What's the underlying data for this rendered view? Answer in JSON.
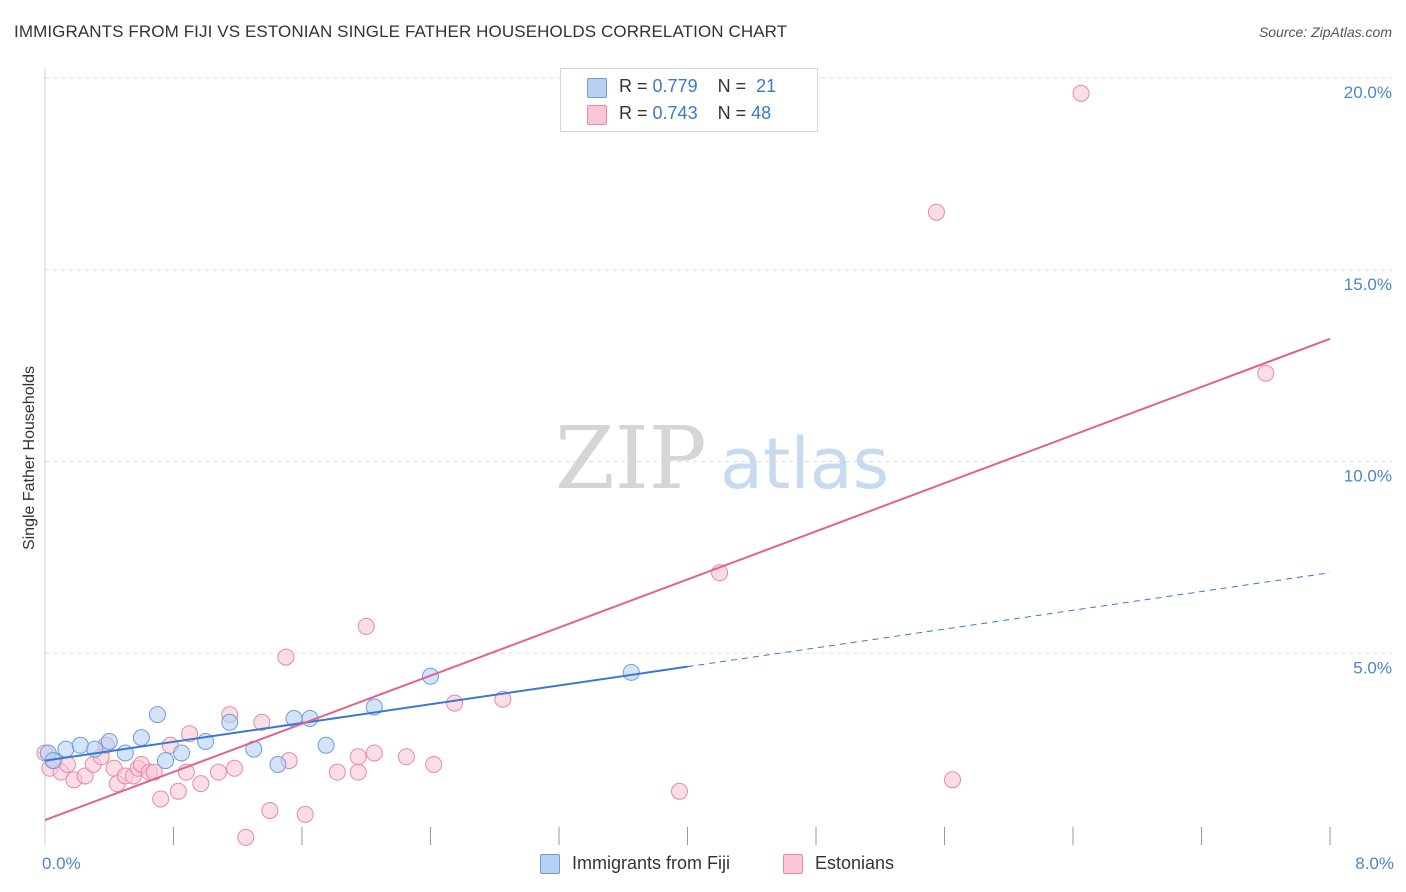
{
  "title": "IMMIGRANTS FROM FIJI VS ESTONIAN SINGLE FATHER HOUSEHOLDS CORRELATION CHART",
  "source": "Source: ZipAtlas.com",
  "watermark": {
    "zip": "ZIP",
    "atlas": "atlas"
  },
  "legend": {
    "rows": [
      {
        "r_label": "R =",
        "r_value": "0.779",
        "n_label": "N =",
        "n_value": "21"
      },
      {
        "r_label": "R =",
        "r_value": "0.743",
        "n_label": "N =",
        "n_value": "48"
      }
    ]
  },
  "bottom_legend": {
    "fiji": "Immigrants from Fiji",
    "estonians": "Estonians"
  },
  "colors": {
    "fiji_fill": "#b8d1f3",
    "fiji_stroke": "#6b9ee0",
    "fiji_line": "#3a78d4",
    "est_fill": "#f9c6d5",
    "est_stroke": "#e68aa7",
    "est_line": "#e0628e",
    "grid": "#dddddd",
    "tick_text": "#4a86d0"
  },
  "chart_data": {
    "type": "scatter",
    "title": "IMMIGRANTS FROM FIJI VS ESTONIAN SINGLE FATHER HOUSEHOLDS CORRELATION CHART",
    "xlabel": "",
    "ylabel": "Single Father Households",
    "xlim": [
      0,
      8
    ],
    "ylim": [
      0,
      20
    ],
    "x_tick_labels": [
      "0.0%",
      "8.0%"
    ],
    "y_ticks": [
      5,
      10,
      15,
      20
    ],
    "y_tick_labels": [
      "5.0%",
      "10.0%",
      "15.0%",
      "20.0%"
    ],
    "grid": true,
    "series": [
      {
        "name": "Immigrants from Fiji",
        "R": 0.779,
        "N": 21,
        "points": [
          [
            0.02,
            2.4
          ],
          [
            0.05,
            2.2
          ],
          [
            0.13,
            2.5
          ],
          [
            0.22,
            2.6
          ],
          [
            0.31,
            2.5
          ],
          [
            0.4,
            2.7
          ],
          [
            0.5,
            2.4
          ],
          [
            0.6,
            2.8
          ],
          [
            0.7,
            3.4
          ],
          [
            0.75,
            2.2
          ],
          [
            0.85,
            2.4
          ],
          [
            1.0,
            2.7
          ],
          [
            1.15,
            3.2
          ],
          [
            1.3,
            2.5
          ],
          [
            1.45,
            2.1
          ],
          [
            1.55,
            3.3
          ],
          [
            1.65,
            3.3
          ],
          [
            1.75,
            2.6
          ],
          [
            2.05,
            3.6
          ],
          [
            2.4,
            4.4
          ],
          [
            3.65,
            4.5
          ]
        ],
        "trend": {
          "x0": 0.0,
          "y0": 2.2,
          "x1": 4.0,
          "y1": 4.65,
          "dash_to_x": 8.0,
          "dash_to_y": 7.1
        }
      },
      {
        "name": "Estonians",
        "R": 0.743,
        "N": 48,
        "points": [
          [
            0.03,
            2.0
          ],
          [
            0.06,
            2.2
          ],
          [
            0.1,
            1.9
          ],
          [
            0.14,
            2.1
          ],
          [
            0.18,
            1.7
          ],
          [
            0.25,
            1.8
          ],
          [
            0.3,
            2.1
          ],
          [
            0.35,
            2.3
          ],
          [
            0.38,
            2.6
          ],
          [
            0.43,
            2.0
          ],
          [
            0.45,
            1.6
          ],
          [
            0.5,
            1.8
          ],
          [
            0.55,
            1.8
          ],
          [
            0.58,
            2.0
          ],
          [
            0.6,
            2.1
          ],
          [
            0.65,
            1.9
          ],
          [
            0.68,
            1.9
          ],
          [
            0.72,
            1.2
          ],
          [
            0.78,
            2.6
          ],
          [
            0.83,
            1.4
          ],
          [
            0.88,
            1.9
          ],
          [
            0.9,
            2.9
          ],
          [
            0.97,
            1.6
          ],
          [
            1.08,
            1.9
          ],
          [
            1.15,
            3.4
          ],
          [
            1.18,
            2.0
          ],
          [
            1.25,
            0.2
          ],
          [
            1.35,
            3.2
          ],
          [
            1.4,
            0.9
          ],
          [
            1.5,
            4.9
          ],
          [
            1.52,
            2.2
          ],
          [
            1.62,
            0.8
          ],
          [
            1.82,
            1.9
          ],
          [
            1.95,
            2.3
          ],
          [
            1.95,
            1.9
          ],
          [
            2.0,
            5.7
          ],
          [
            2.05,
            2.4
          ],
          [
            2.25,
            2.3
          ],
          [
            2.42,
            2.1
          ],
          [
            2.55,
            3.7
          ],
          [
            2.85,
            3.8
          ],
          [
            3.95,
            1.4
          ],
          [
            4.2,
            7.1
          ],
          [
            5.55,
            16.5
          ],
          [
            5.65,
            1.7
          ],
          [
            6.45,
            19.6
          ],
          [
            7.6,
            12.3
          ],
          [
            0.0,
            2.4
          ]
        ],
        "trend": {
          "x0": 0.0,
          "y0": 0.65,
          "x1": 8.0,
          "y1": 13.2
        }
      }
    ]
  }
}
